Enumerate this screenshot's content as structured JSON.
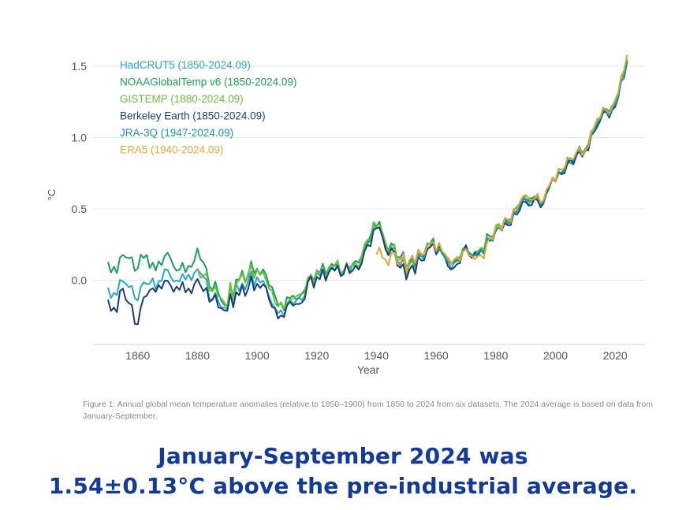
{
  "chart_data": {
    "type": "line",
    "title": "",
    "xlabel": "Year",
    "ylabel": "°C",
    "xlim": [
      1845,
      2030
    ],
    "ylim": [
      -0.45,
      1.6
    ],
    "xticks": [
      1860,
      1880,
      1900,
      1920,
      1940,
      1960,
      1980,
      2000,
      2020
    ],
    "yticks": [
      0.0,
      0.5,
      1.0,
      1.5
    ],
    "ytick_labels": [
      "0.0",
      "0.5",
      "1.0",
      "1.5"
    ],
    "grid": true,
    "legend_position": "top-left",
    "base_years": [
      1850,
      1855,
      1860,
      1865,
      1870,
      1875,
      1880,
      1885,
      1890,
      1895,
      1900,
      1905,
      1910,
      1915,
      1920,
      1925,
      1930,
      1935,
      1940,
      1945,
      1950,
      1955,
      1960,
      1965,
      1970,
      1975,
      1980,
      1985,
      1990,
      1995,
      2000,
      2005,
      2010,
      2015,
      2020,
      2024
    ],
    "series": [
      {
        "name": "HadCRUT5 (1850-2024.09)",
        "color": "#2aa7c9",
        "start": 1850,
        "end": 2024,
        "values": [
          -0.08,
          -0.05,
          -0.1,
          -0.02,
          0.02,
          0.04,
          0.08,
          -0.1,
          -0.15,
          -0.05,
          0.05,
          -0.18,
          -0.22,
          -0.08,
          0.02,
          0.06,
          0.08,
          0.14,
          0.38,
          0.22,
          0.08,
          0.16,
          0.22,
          0.14,
          0.2,
          0.18,
          0.35,
          0.42,
          0.58,
          0.55,
          0.72,
          0.82,
          0.92,
          1.15,
          1.22,
          1.54
        ]
      },
      {
        "name": "NOAAGlobalTemp v6 (1850-2024.09)",
        "color": "#1aa05a",
        "start": 1850,
        "end": 2024,
        "values": [
          0.08,
          0.14,
          0.12,
          0.1,
          0.14,
          0.08,
          0.2,
          -0.04,
          -0.1,
          0.02,
          0.12,
          -0.1,
          -0.18,
          -0.06,
          0.05,
          0.08,
          0.1,
          0.16,
          0.4,
          0.24,
          0.1,
          0.18,
          0.24,
          0.16,
          0.22,
          0.2,
          0.36,
          0.44,
          0.6,
          0.56,
          0.74,
          0.84,
          0.93,
          1.16,
          1.23,
          1.55
        ]
      },
      {
        "name": "GISTEMP (1880-2024.09)",
        "color": "#6cbf3e",
        "start": 1880,
        "end": 2024,
        "values": [
          0.06,
          -0.06,
          -0.12,
          0.0,
          0.1,
          -0.12,
          -0.2,
          -0.06,
          0.04,
          0.07,
          0.09,
          0.15,
          0.39,
          0.23,
          0.09,
          0.17,
          0.23,
          0.15,
          0.21,
          0.19,
          0.36,
          0.43,
          0.59,
          0.56,
          0.73,
          0.83,
          0.92,
          1.16,
          1.22,
          1.55
        ]
      },
      {
        "name": "Berkeley Earth (1850-2024.09)",
        "color": "#1b3f7a",
        "start": 1850,
        "end": 2024,
        "values": [
          -0.2,
          -0.12,
          -0.26,
          -0.06,
          -0.04,
          -0.02,
          0.0,
          -0.14,
          -0.17,
          -0.08,
          0.02,
          -0.2,
          -0.24,
          -0.1,
          0.0,
          0.05,
          0.07,
          0.13,
          0.36,
          0.2,
          0.06,
          0.15,
          0.21,
          0.13,
          0.2,
          0.18,
          0.34,
          0.41,
          0.57,
          0.54,
          0.72,
          0.82,
          0.91,
          1.14,
          1.21,
          1.53
        ]
      },
      {
        "name": "JRA-3Q (1947-2024.09)",
        "color": "#1b97a3",
        "start": 1947,
        "end": 2024,
        "values": [
          0.22,
          0.12,
          0.17,
          0.23,
          0.15,
          0.21,
          0.19,
          0.35,
          0.42,
          0.58,
          0.55,
          0.73,
          0.83,
          0.92,
          1.15,
          1.22,
          1.54
        ]
      },
      {
        "name": "ERA5 (1940-2024.09)",
        "color": "#e4a736",
        "start": 1940,
        "end": 2024,
        "values": [
          0.2,
          0.16,
          0.12,
          0.19,
          0.24,
          0.16,
          0.21,
          0.14,
          0.36,
          0.44,
          0.6,
          0.56,
          0.74,
          0.84,
          0.93,
          1.17,
          1.24,
          1.58
        ]
      }
    ]
  },
  "caption": "Figure 1: Annual global mean temperature anomalies (relative to 1850–1900) from 1850 to 2024 from six datasets. The 2024 average is based on data from January-September.",
  "headline_line1": "January-September 2024 was",
  "headline_line2": "1.54±0.13°C above the pre-industrial average."
}
